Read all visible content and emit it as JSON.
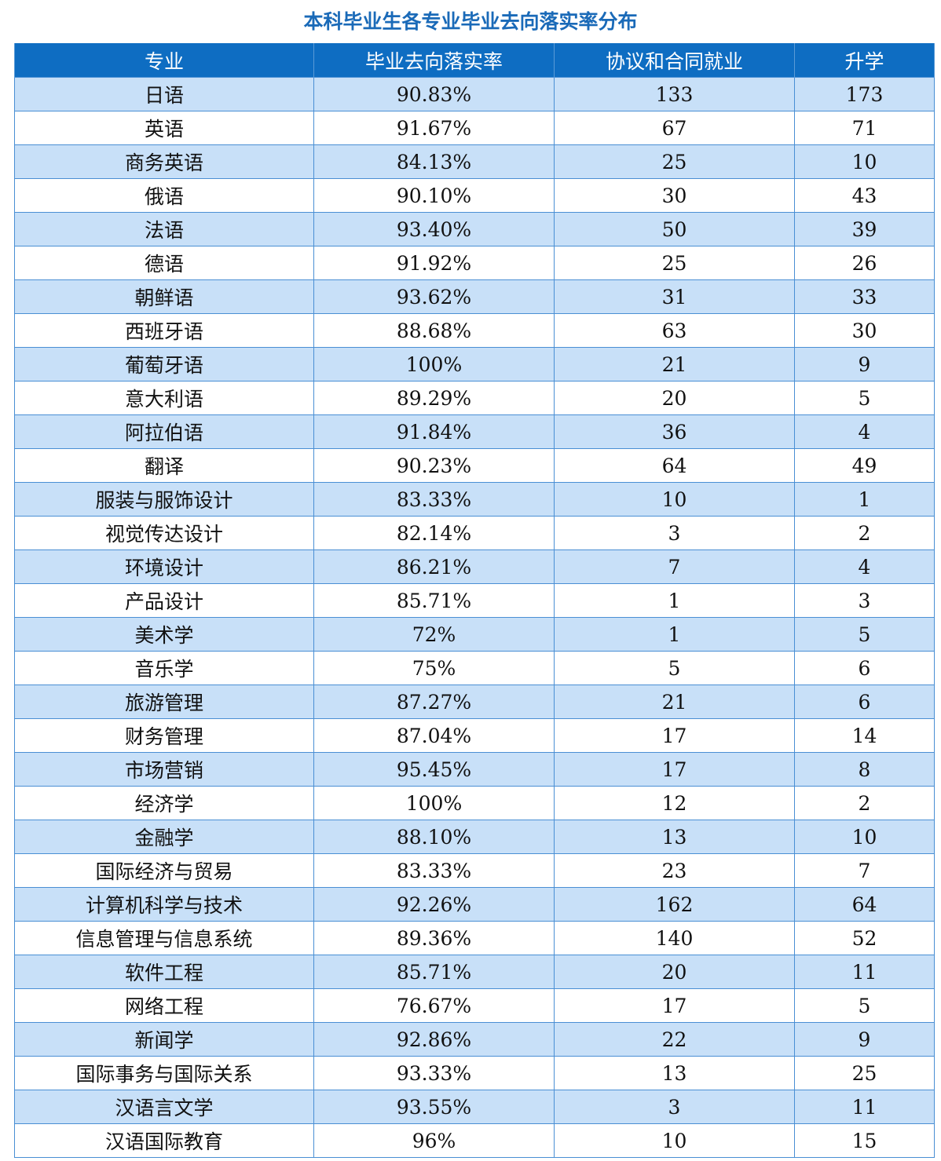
{
  "title": "本科毕业生各专业毕业去向落实率分布",
  "headers": [
    "专业",
    "毕业去向落实率",
    "协议和合同就业",
    "升学"
  ],
  "rows": [
    [
      "日语",
      "90.83%",
      "133",
      "173"
    ],
    [
      "英语",
      "91.67%",
      "67",
      "71"
    ],
    [
      "商务英语",
      "84.13%",
      "25",
      "10"
    ],
    [
      "俄语",
      "90.10%",
      "30",
      "43"
    ],
    [
      "法语",
      "93.40%",
      "50",
      "39"
    ],
    [
      "德语",
      "91.92%",
      "25",
      "26"
    ],
    [
      "朝鲜语",
      "93.62%",
      "31",
      "33"
    ],
    [
      "西班牙语",
      "88.68%",
      "63",
      "30"
    ],
    [
      "葡萄牙语",
      "100%",
      "21",
      "9"
    ],
    [
      "意大利语",
      "89.29%",
      "20",
      "5"
    ],
    [
      "阿拉伯语",
      "91.84%",
      "36",
      "4"
    ],
    [
      "翻译",
      "90.23%",
      "64",
      "49"
    ],
    [
      "服装与服饰设计",
      "83.33%",
      "10",
      "1"
    ],
    [
      "视觉传达设计",
      "82.14%",
      "3",
      "2"
    ],
    [
      "环境设计",
      "86.21%",
      "7",
      "4"
    ],
    [
      "产品设计",
      "85.71%",
      "1",
      "3"
    ],
    [
      "美术学",
      "72%",
      "1",
      "5"
    ],
    [
      "音乐学",
      "75%",
      "5",
      "6"
    ],
    [
      "旅游管理",
      "87.27%",
      "21",
      "6"
    ],
    [
      "财务管理",
      "87.04%",
      "17",
      "14"
    ],
    [
      "市场营销",
      "95.45%",
      "17",
      "8"
    ],
    [
      "经济学",
      "100%",
      "12",
      "2"
    ],
    [
      "金融学",
      "88.10%",
      "13",
      "10"
    ],
    [
      "国际经济与贸易",
      "83.33%",
      "23",
      "7"
    ],
    [
      "计算机科学与技术",
      "92.26%",
      "162",
      "64"
    ],
    [
      "信息管理与信息系统",
      "89.36%",
      "140",
      "52"
    ],
    [
      "软件工程",
      "85.71%",
      "20",
      "11"
    ],
    [
      "网络工程",
      "76.67%",
      "17",
      "5"
    ],
    [
      "新闻学",
      "92.86%",
      "22",
      "9"
    ],
    [
      "国际事务与国际关系",
      "93.33%",
      "13",
      "25"
    ],
    [
      "汉语言文学",
      "93.55%",
      "3",
      "11"
    ],
    [
      "汉语国际教育",
      "96%",
      "10",
      "15"
    ]
  ]
}
